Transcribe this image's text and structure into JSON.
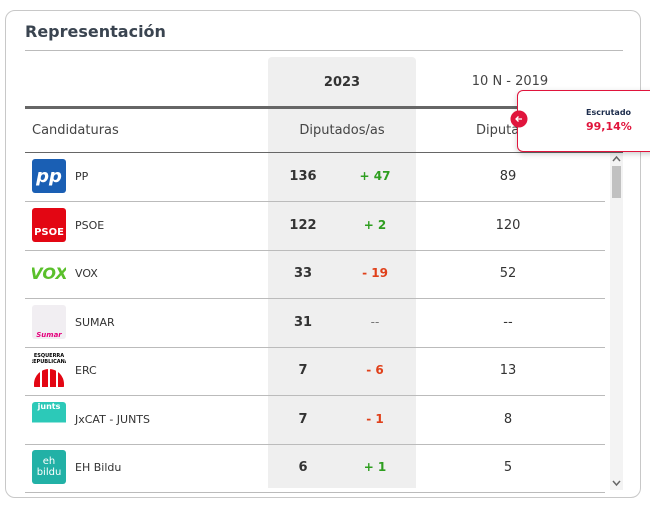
{
  "header": {
    "title": "Representación"
  },
  "table": {
    "year_current": "2023",
    "year_previous": "10 N - 2019",
    "columns": [
      "Candidaturas",
      "Diputados/as",
      "Diputados/as"
    ],
    "rows": [
      {
        "name": "PP",
        "logo": "pp",
        "seats": 136,
        "change": "+ 47",
        "previous": "89"
      },
      {
        "name": "PSOE",
        "logo": "PSOE",
        "seats": 122,
        "change": "+ 2",
        "previous": "120"
      },
      {
        "name": "VOX",
        "logo": "VOX",
        "seats": 33,
        "change": "- 19",
        "previous": "52"
      },
      {
        "name": "SUMAR",
        "logo": "Sumar",
        "seats": 31,
        "change": "--",
        "previous": "--"
      },
      {
        "name": "ERC",
        "logo": "ESQUERRA REPUBLICANA",
        "seats": 7,
        "change": "- 6",
        "previous": "13"
      },
      {
        "name": "JxCAT - JUNTS",
        "logo": "junts",
        "seats": 7,
        "change": "- 1",
        "previous": "8"
      },
      {
        "name": "EH Bildu",
        "logo": "eh bildu",
        "seats": 6,
        "change": "+ 1",
        "previous": "5"
      }
    ]
  },
  "popup": {
    "label": "Escrutado",
    "value": "99,14%"
  }
}
